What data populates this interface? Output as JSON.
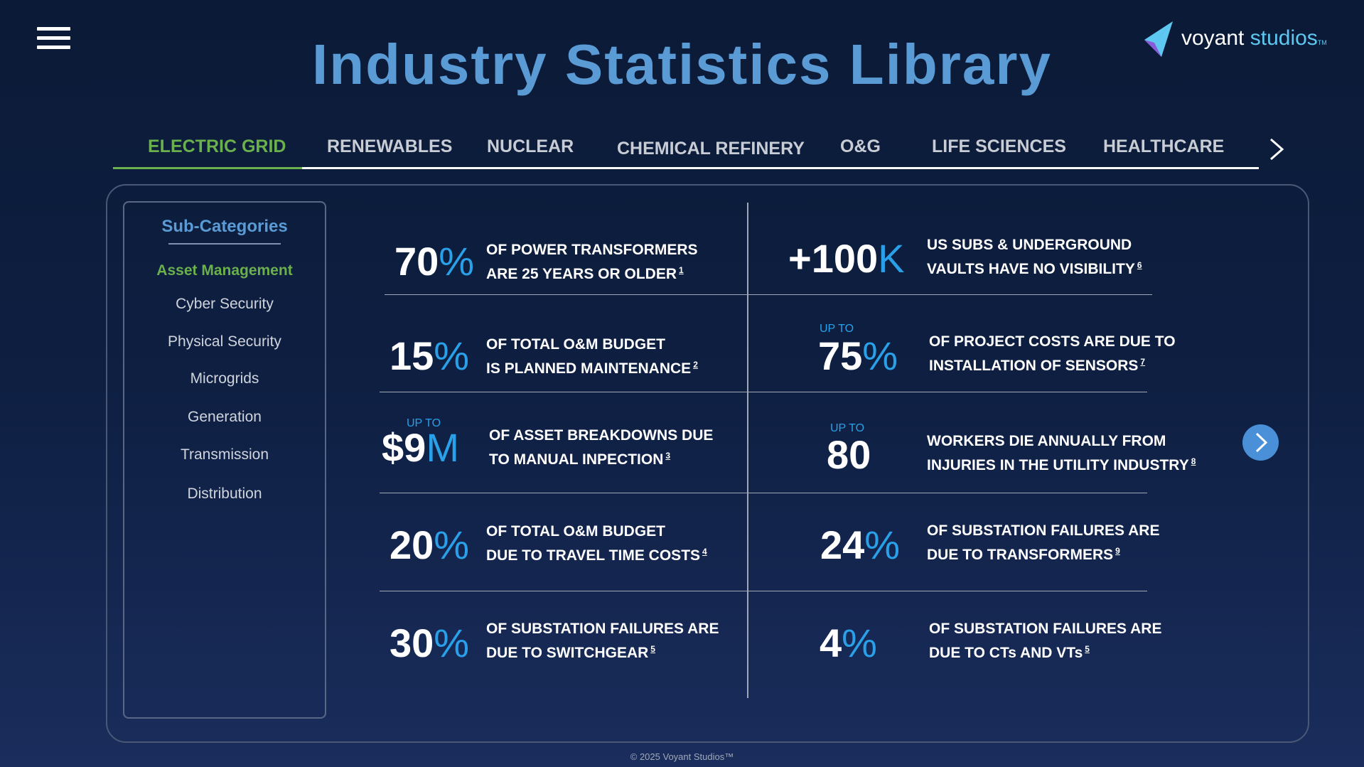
{
  "header": {
    "title": "Industry Statistics Library",
    "logo_text_main": "voyant ",
    "logo_text_accent": "studios",
    "logo_tm": "TM"
  },
  "icons": {
    "menu": "hamburger-menu-icon",
    "tab_next": "chevron-right-icon",
    "stats_next": "chevron-right-circle-icon"
  },
  "tabs": [
    {
      "label": "ELECTRIC GRID",
      "active": true
    },
    {
      "label": "RENEWABLES"
    },
    {
      "label": "NUCLEAR"
    },
    {
      "label": "CHEMICAL REFINERY"
    },
    {
      "label": "O&G"
    },
    {
      "label": "LIFE SCIENCES"
    },
    {
      "label": "HEALTHCARE"
    }
  ],
  "sidebar": {
    "title": "Sub-Categories",
    "items": [
      {
        "label": "Asset Management",
        "active": true
      },
      {
        "label": "Cyber Security"
      },
      {
        "label": "Physical Security"
      },
      {
        "label": "Microgrids"
      },
      {
        "label": "Generation"
      },
      {
        "label": "Transmission"
      },
      {
        "label": "Distribution"
      }
    ]
  },
  "stats": [
    {
      "prefix": "",
      "number": "70",
      "unit": "%",
      "upto": "",
      "line1": "OF POWER TRANSFORMERS",
      "line2": "ARE 25 YEARS OR OLDER",
      "ref": "1"
    },
    {
      "prefix": "",
      "number": "+100",
      "unit": "K",
      "upto": "",
      "line1": "US SUBS & UNDERGROUND",
      "line2": "VAULTS HAVE NO VISIBILITY",
      "ref": "6"
    },
    {
      "prefix": "",
      "number": "15",
      "unit": "%",
      "upto": "",
      "line1": "OF TOTAL O&M BUDGET",
      "line2": "IS PLANNED MAINTENANCE",
      "ref": "2"
    },
    {
      "prefix": "",
      "number": "75",
      "unit": "%",
      "upto": "UP TO",
      "line1": "OF PROJECT COSTS ARE DUE TO",
      "line2": "INSTALLATION OF SENSORS",
      "ref": "7"
    },
    {
      "prefix": "$",
      "number": "9",
      "unit": "M",
      "upto": "UP TO",
      "line1": "OF ASSET BREAKDOWNS DUE",
      "line2": "TO MANUAL INPECTION",
      "ref": "3"
    },
    {
      "prefix": "",
      "number": "80",
      "unit": "",
      "upto": "UP TO",
      "line1": "WORKERS DIE ANNUALLY FROM",
      "line2": "INJURIES IN THE UTILITY INDUSTRY",
      "ref": "8"
    },
    {
      "prefix": "",
      "number": "20",
      "unit": "%",
      "upto": "",
      "line1": "OF TOTAL O&M BUDGET",
      "line2": "DUE TO TRAVEL TIME COSTS",
      "ref": "4"
    },
    {
      "prefix": "",
      "number": "24",
      "unit": "%",
      "upto": "",
      "line1": "OF SUBSTATION FAILURES ARE",
      "line2": "DUE TO TRANSFORMERS",
      "ref": "9"
    },
    {
      "prefix": "",
      "number": "30",
      "unit": "%",
      "upto": "",
      "line1": "OF SUBSTATION FAILURES ARE",
      "line2": "DUE TO SWITCHGEAR",
      "ref": "5"
    },
    {
      "prefix": "",
      "number": "4",
      "unit": "%",
      "upto": "",
      "line1": "OF SUBSTATION FAILURES ARE",
      "line2": "DUE TO CTs AND VTs",
      "ref": "5"
    }
  ],
  "footer": {
    "text": "© 2025 Voyant Studios™"
  },
  "colors": {
    "accent_blue": "#5b9bd5",
    "accent_green": "#6ab04c",
    "unit_blue": "#29a0e8"
  }
}
